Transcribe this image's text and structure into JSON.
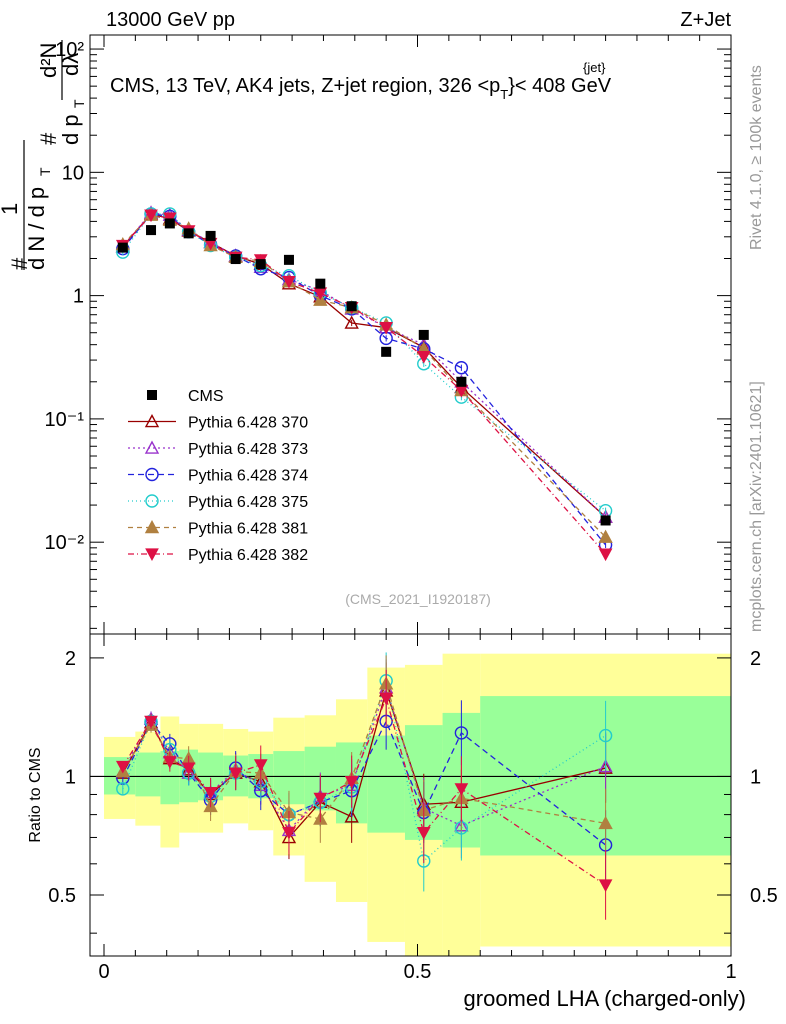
{
  "header": {
    "left": "13000 GeV pp",
    "right": "Z+Jet"
  },
  "side": {
    "rivet": "Rivet 4.1.0, ≥ 100k events",
    "source": "mcplots.cern.ch [arXiv:2401.10621]"
  },
  "top_panel": {
    "title_main": "CMS, 13 TeV, AK4 jets, Z+jet region, 326 <p",
    "title_sub": "T",
    "title_sup": "{jet}",
    "title_end": "}< 408 GeV",
    "ylabel_parts": [
      "#",
      "1",
      "d N / d p",
      "T",
      "#",
      "d p",
      "T",
      "dλ",
      "d²N"
    ],
    "yticks": [
      "10²",
      "10",
      "1",
      "10⁻¹",
      "10⁻²"
    ],
    "watermark": "(CMS_2021_I1920187)"
  },
  "bottom_panel": {
    "ylabel": "Ratio to CMS",
    "yticks": [
      "2",
      "1",
      "0.5"
    ],
    "xticks": [
      "0",
      "0.5",
      "1"
    ],
    "xlabel": "groomed LHA (charged-only)"
  },
  "colors": {
    "CMS": "#000000",
    "p370": "#990000",
    "p373": "#9933cc",
    "p374": "#2222dd",
    "p375": "#22cccc",
    "p381": "#b08040",
    "p382": "#dd1144",
    "band_inner": "#99ff99",
    "band_outer": "#ffff99"
  },
  "chart_data": {
    "type": "scatter",
    "x": [
      0.03,
      0.075,
      0.105,
      0.135,
      0.17,
      0.21,
      0.25,
      0.295,
      0.345,
      0.395,
      0.45,
      0.51,
      0.57,
      0.8
    ],
    "xlim": [
      0,
      1
    ],
    "ylim_main": [
      0.0018,
      130
    ],
    "ylim_ratio": [
      0.35,
      2.3
    ],
    "series": [
      {
        "name": "CMS",
        "key": "CMS",
        "marker": "square",
        "dash": "",
        "values": [
          2.45,
          3.4,
          3.85,
          3.2,
          3.05,
          1.98,
          1.8,
          1.95,
          1.25,
          0.82,
          0.35,
          0.48,
          0.2,
          0.015
        ],
        "ratio": [
          1,
          1,
          1,
          1,
          1,
          1,
          1,
          1,
          1,
          1,
          1,
          1,
          1,
          1
        ]
      },
      {
        "name": "Pythia 6.428 370",
        "key": "p370",
        "marker": "triangle-open",
        "dash": "",
        "values": [
          2.5,
          4.6,
          4.2,
          3.35,
          2.7,
          2.1,
          1.8,
          1.25,
          0.98,
          0.6,
          0.55,
          0.38,
          0.18,
          0.016
        ],
        "ratio": [
          1.02,
          1.37,
          1.11,
          1.04,
          0.9,
          1.02,
          0.97,
          0.7,
          0.86,
          0.79,
          1.65,
          0.85,
          0.86,
          1.05
        ]
      },
      {
        "name": "Pythia 6.428 373",
        "key": "p373",
        "marker": "triangle-open",
        "dash": "2,3",
        "values": [
          2.5,
          4.7,
          4.5,
          3.4,
          2.7,
          2.1,
          1.7,
          1.35,
          1.1,
          0.78,
          0.55,
          0.4,
          0.2,
          0.016
        ],
        "ratio": [
          1.03,
          1.4,
          1.15,
          1.02,
          0.91,
          1.04,
          0.95,
          0.73,
          0.89,
          0.95,
          1.68,
          0.83,
          0.75,
          1.06
        ]
      },
      {
        "name": "Pythia 6.428 374",
        "key": "p374",
        "marker": "circle-open",
        "dash": "6,4",
        "values": [
          2.4,
          4.6,
          4.4,
          3.3,
          2.6,
          2.1,
          1.65,
          1.4,
          1.0,
          0.78,
          0.45,
          0.37,
          0.26,
          0.0095
        ],
        "ratio": [
          0.99,
          1.37,
          1.21,
          1.02,
          0.87,
          1.05,
          0.92,
          0.8,
          0.86,
          0.92,
          1.38,
          0.81,
          1.29,
          0.67
        ]
      },
      {
        "name": "Pythia 6.428 375",
        "key": "p375",
        "marker": "circle-open",
        "dash": "1,3",
        "values": [
          2.25,
          4.6,
          4.6,
          3.3,
          2.55,
          2.05,
          1.75,
          1.45,
          1.05,
          0.8,
          0.6,
          0.28,
          0.15,
          0.018
        ],
        "ratio": [
          0.93,
          1.38,
          1.17,
          1.02,
          0.89,
          1.02,
          0.97,
          0.8,
          0.86,
          0.94,
          1.75,
          0.61,
          0.74,
          1.27
        ]
      },
      {
        "name": "Pythia 6.428 381",
        "key": "p381",
        "marker": "triangle-filled",
        "dash": "5,4",
        "values": [
          2.6,
          4.5,
          4.1,
          3.5,
          2.55,
          2.05,
          1.9,
          1.3,
          0.92,
          0.8,
          0.58,
          0.37,
          0.17,
          0.011
        ],
        "ratio": [
          1.03,
          1.35,
          1.12,
          1.11,
          0.84,
          1.03,
          1.02,
          0.81,
          0.78,
          0.99,
          1.72,
          0.82,
          0.88,
          0.76
        ]
      },
      {
        "name": "Pythia 6.428 382",
        "key": "p382",
        "marker": "triangle-down-filled",
        "dash": "6,3,1,3",
        "values": [
          2.55,
          4.5,
          4.25,
          3.35,
          2.65,
          2.05,
          1.95,
          1.3,
          1.05,
          0.8,
          0.55,
          0.32,
          0.17,
          0.008
        ],
        "ratio": [
          1.06,
          1.38,
          1.09,
          1.05,
          0.91,
          1.02,
          1.07,
          0.72,
          0.88,
          0.97,
          1.58,
          0.72,
          0.93,
          0.53
        ]
      }
    ],
    "band_edges": [
      0.0,
      0.05,
      0.09,
      0.12,
      0.15,
      0.19,
      0.23,
      0.27,
      0.32,
      0.37,
      0.42,
      0.48,
      0.54,
      0.6,
      1.0
    ],
    "band_inner": [
      [
        0.9,
        1.12
      ],
      [
        0.89,
        1.15
      ],
      [
        0.85,
        1.16
      ],
      [
        0.86,
        1.17
      ],
      [
        0.87,
        1.15
      ],
      [
        0.89,
        1.13
      ],
      [
        0.88,
        1.14
      ],
      [
        0.85,
        1.16
      ],
      [
        0.82,
        1.19
      ],
      [
        0.76,
        1.22
      ],
      [
        0.72,
        1.27
      ],
      [
        0.69,
        1.35
      ],
      [
        0.66,
        1.45
      ],
      [
        0.63,
        1.6
      ]
    ],
    "band_outer": [
      [
        0.78,
        1.26
      ],
      [
        0.75,
        1.3
      ],
      [
        0.66,
        1.42
      ],
      [
        0.72,
        1.36
      ],
      [
        0.72,
        1.36
      ],
      [
        0.76,
        1.32
      ],
      [
        0.73,
        1.3
      ],
      [
        0.63,
        1.41
      ],
      [
        0.54,
        1.43
      ],
      [
        0.48,
        1.57
      ],
      [
        0.38,
        1.89
      ],
      [
        0.31,
        1.92
      ],
      [
        0.33,
        2.05
      ],
      [
        0.37,
        2.05
      ]
    ],
    "ratio_reference": 1
  }
}
